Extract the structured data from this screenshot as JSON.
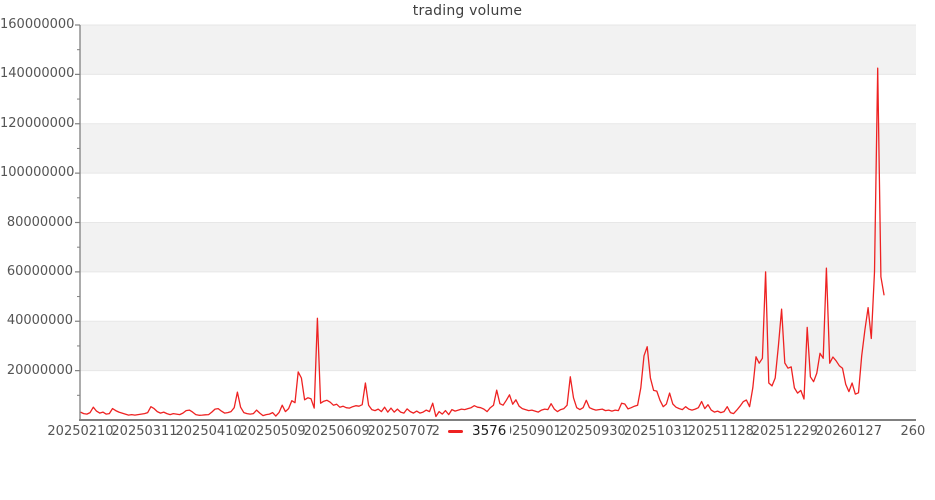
{
  "title": "trading volume",
  "legend": {
    "series_label": "3576"
  },
  "colors": {
    "line": "#ee2222",
    "band": "#f2f2f2",
    "band_edge_line": "#e7e7e7",
    "axis": "#808080",
    "tick_text": "#555555",
    "title_text": "#3f3f3f",
    "background": "#ffffff"
  },
  "chart_data": {
    "type": "line",
    "title": "trading volume",
    "ylabel": "",
    "xlabel": "",
    "ylim": [
      0,
      160000000
    ],
    "grid": "alternating horizontal gray bands every 20000000, subtle line at each band edge",
    "legend_position": "bottom center, overlapping x-axis label row",
    "y_axis": {
      "major_tick_interval": 20000000,
      "minor_tick_interval": 10000000,
      "tick_labels": [
        "160000000",
        "140000000",
        "120000000",
        "100000000",
        "80000000",
        "60000000",
        "40000000",
        "20000000"
      ]
    },
    "x_axis": {
      "tick_every_n_points": 20,
      "ticks": [
        {
          "index": 0,
          "label": "20250210"
        },
        {
          "index": 20,
          "label": "20250311"
        },
        {
          "index": 40,
          "label": "20250410"
        },
        {
          "index": 60,
          "label": "20250509"
        },
        {
          "index": 80,
          "label": "20250609"
        },
        {
          "index": 100,
          "label": "20250707"
        },
        {
          "index": 120,
          "label": "20250804",
          "hidden_behind_legend": true
        },
        {
          "index": 140,
          "label": "20250901"
        },
        {
          "index": 160,
          "label": "20250930"
        },
        {
          "index": 180,
          "label": "20251031"
        },
        {
          "index": 200,
          "label": "20251128"
        },
        {
          "index": 220,
          "label": "20251229"
        },
        {
          "index": 240,
          "label": "20260127"
        },
        {
          "index": 260,
          "label": "260",
          "truncated_at_right_edge": true
        }
      ]
    },
    "series": [
      {
        "name": "3576",
        "color": "#ee2222",
        "values_unit": "millions (multiply by 1e6 for axis value)",
        "values_millions": [
          3.2,
          2.6,
          2.4,
          3.0,
          5.2,
          3.6,
          2.8,
          3.2,
          2.4,
          2.6,
          4.6,
          3.8,
          3.2,
          2.8,
          2.4,
          2.0,
          2.2,
          2.0,
          2.2,
          2.4,
          2.6,
          3.0,
          5.4,
          4.6,
          3.4,
          2.8,
          3.2,
          2.6,
          2.2,
          2.6,
          2.4,
          2.2,
          2.8,
          3.8,
          4.0,
          3.2,
          2.2,
          1.9,
          2.0,
          2.1,
          2.2,
          3.2,
          4.4,
          4.6,
          3.6,
          2.8,
          3.0,
          3.4,
          5.0,
          11.3,
          5.2,
          3.0,
          2.6,
          2.4,
          2.6,
          4.0,
          2.8,
          1.8,
          2.2,
          2.4,
          3.0,
          1.6,
          3.0,
          6.0,
          3.4,
          4.6,
          7.8,
          7.0,
          19.5,
          17.0,
          8.2,
          9.0,
          8.6,
          4.8,
          41.2,
          6.8,
          7.6,
          8.0,
          7.2,
          6.0,
          6.4,
          5.2,
          5.6,
          5.0,
          4.8,
          5.4,
          5.8,
          5.6,
          6.2,
          15.0,
          6.0,
          4.2,
          3.8,
          4.4,
          3.4,
          5.2,
          3.2,
          4.8,
          3.2,
          4.4,
          3.2,
          2.8,
          4.5,
          3.4,
          2.8,
          3.6,
          2.8,
          3.2,
          4.0,
          3.4,
          6.8,
          1.4,
          3.4,
          2.4,
          3.8,
          2.2,
          4.2,
          3.6,
          4.0,
          4.4,
          4.2,
          4.6,
          5.0,
          5.8,
          5.2,
          5.0,
          4.4,
          3.4,
          5.0,
          6.0,
          12.1,
          6.6,
          6.0,
          8.0,
          10.2,
          6.4,
          8.2,
          5.6,
          4.6,
          4.2,
          3.8,
          4.0,
          3.6,
          3.2,
          4.0,
          4.4,
          4.2,
          6.6,
          4.4,
          3.4,
          4.2,
          4.6,
          6.0,
          17.5,
          9.0,
          5.0,
          4.2,
          5.0,
          8.0,
          5.0,
          4.4,
          4.0,
          4.2,
          4.4,
          3.8,
          4.0,
          3.6,
          4.0,
          3.8,
          6.8,
          6.5,
          4.5,
          5.0,
          5.6,
          6.0,
          13.0,
          26.0,
          29.7,
          17.0,
          12.0,
          11.7,
          8.0,
          5.4,
          6.5,
          10.9,
          6.5,
          5.2,
          4.6,
          4.2,
          5.4,
          4.4,
          4.0,
          4.4,
          5.0,
          7.5,
          4.6,
          6.2,
          4.0,
          3.2,
          3.6,
          3.0,
          3.4,
          5.4,
          3.0,
          2.6,
          4.0,
          5.6,
          7.4,
          8.1,
          5.4,
          13.0,
          25.6,
          23.0,
          25.0,
          60.0,
          15.0,
          13.8,
          17.0,
          30.0,
          44.9,
          23.1,
          21.0,
          21.5,
          13.0,
          10.9,
          12.0,
          8.5,
          37.5,
          17.5,
          15.5,
          19.0,
          27.0,
          25.0,
          61.5,
          23.0,
          25.5,
          24.0,
          22.0,
          21.0,
          14.5,
          11.5,
          15.0,
          10.5,
          11.0,
          26.0,
          36.5,
          45.5,
          33.0,
          60.0,
          142.5,
          58.0,
          50.5
        ]
      }
    ]
  }
}
